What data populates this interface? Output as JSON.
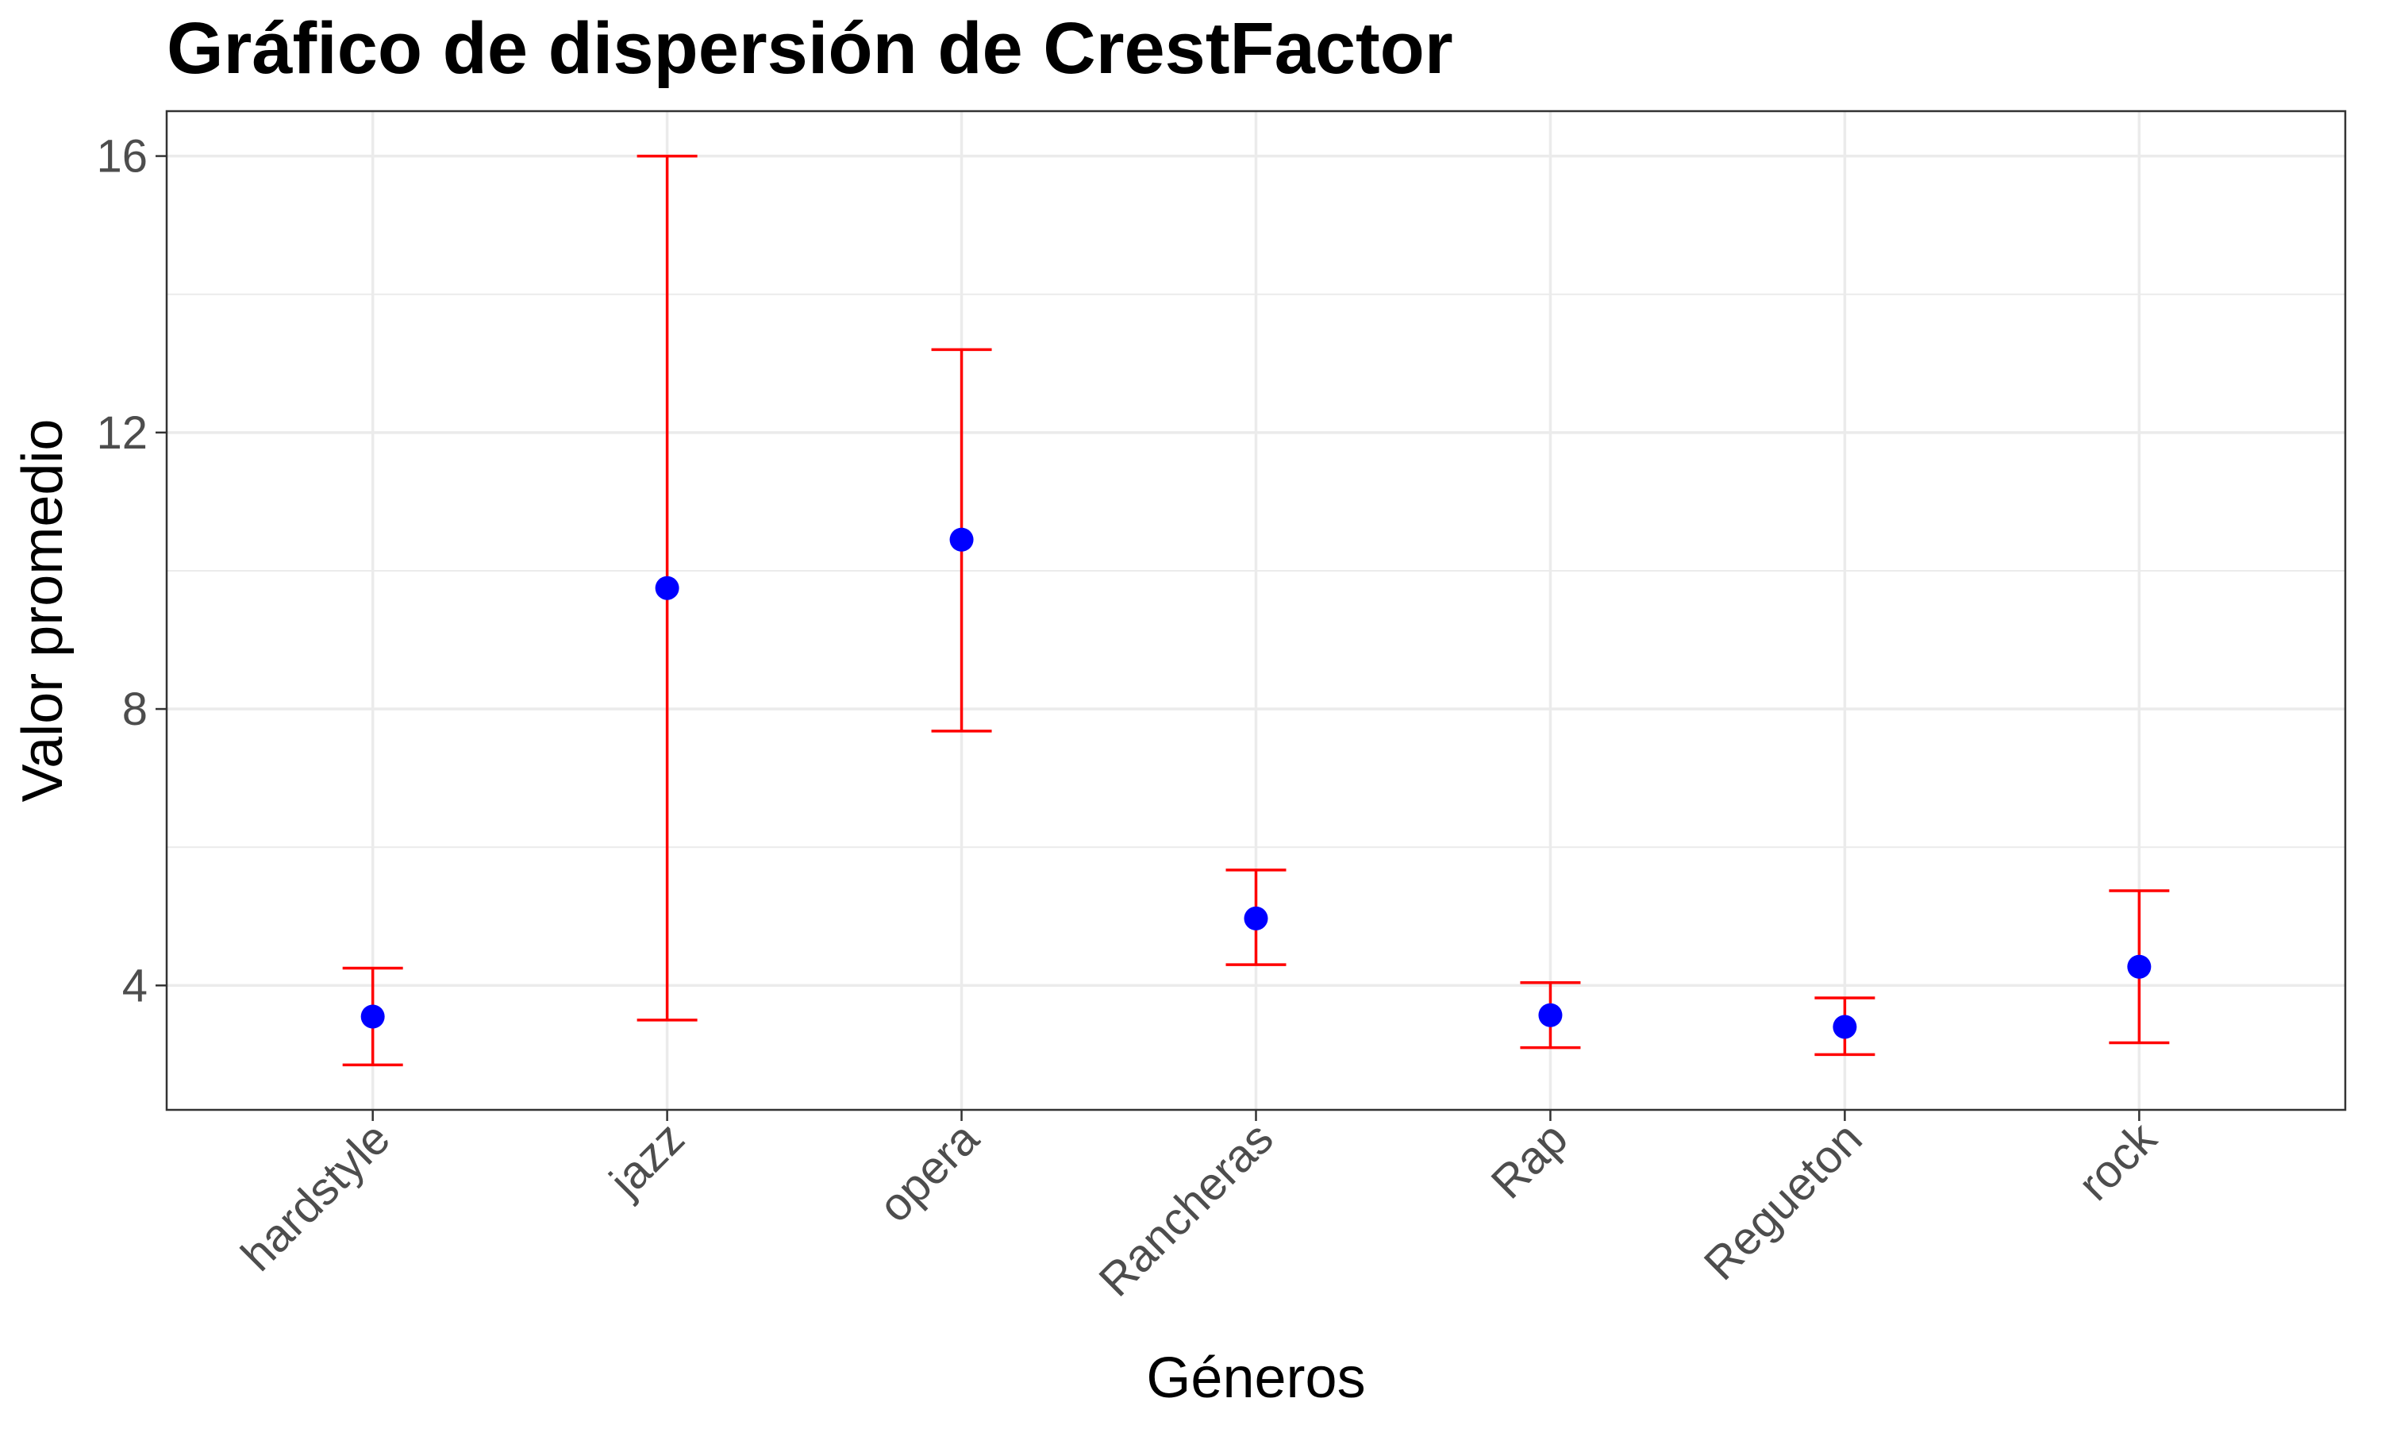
{
  "chart_data": {
    "type": "scatter",
    "title": "Gráfico de dispersión de CrestFactor",
    "xlabel": "Géneros",
    "ylabel": "Valor promedio",
    "categories": [
      "hardstyle",
      "jazz",
      "opera",
      "Rancheras",
      "Rap",
      "Regueton",
      "rock"
    ],
    "series": [
      {
        "values": [
          3.55,
          9.75,
          10.45,
          4.97,
          3.57,
          3.4,
          4.27
        ],
        "error_lower": [
          2.85,
          3.5,
          7.68,
          4.3,
          3.1,
          3.0,
          3.17
        ],
        "error_upper": [
          4.25,
          16.0,
          13.2,
          5.67,
          4.04,
          3.82,
          5.37
        ]
      }
    ],
    "ylim": [
      2.2,
      16.65
    ],
    "yticks": [
      4,
      8,
      12,
      16
    ],
    "grid": true,
    "legend": "none",
    "colors": {
      "point": "#0000ff",
      "errorbar": "#ff0000",
      "grid": "#ebebeb",
      "panel_border": "#333333",
      "tick_label": "#4d4d4d"
    }
  }
}
